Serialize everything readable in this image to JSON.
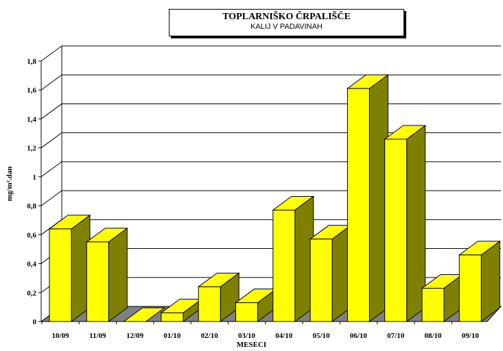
{
  "chart_data": {
    "type": "bar",
    "title": "TOPLARNIŠKO ČRPALIŠČE",
    "subtitle": "KALIJ V PADAVINAH",
    "ylabel": "mg/m².dan",
    "xlabel": "MESECI",
    "categories": [
      "10/09",
      "11/09",
      "12/09",
      "01/10",
      "02/10",
      "03/10",
      "04/10",
      "05/10",
      "06/10",
      "07/10",
      "08/10",
      "09/10"
    ],
    "values": [
      0.64,
      0.55,
      0.0,
      0.06,
      0.24,
      0.13,
      0.77,
      0.57,
      1.61,
      1.26,
      0.23,
      0.46
    ],
    "ylim": [
      0,
      1.8
    ],
    "yticks": [
      "0",
      "0,2",
      "0,4",
      "0,6",
      "0,8",
      "1",
      "1,2",
      "1,4",
      "1,6",
      "1,8"
    ],
    "grid": true,
    "colors": {
      "bar_front": "#ffff00",
      "bar_side": "#808000",
      "floor": "#808080"
    }
  }
}
